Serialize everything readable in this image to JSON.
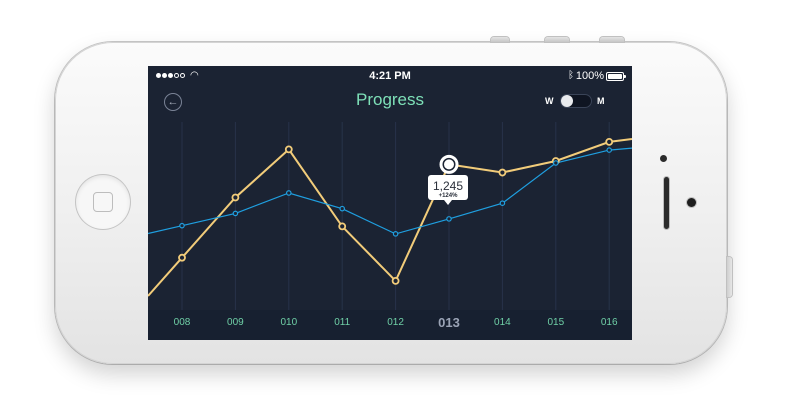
{
  "status_bar": {
    "time": "4:21 PM",
    "battery": "100%",
    "wifi_icon": "wifi-icon",
    "bluetooth_icon": "bluetooth-icon"
  },
  "header": {
    "title": "Progress",
    "back_icon": "back-arrow-icon",
    "toggle": {
      "left_label": "W",
      "right_label": "M",
      "selected": "W"
    }
  },
  "colors": {
    "background": "#1b2333",
    "title": "#7ee0b8",
    "series_gold": "#f2cc7a",
    "series_blue": "#1f9fe0",
    "axis_label": "#6fcfa6"
  },
  "tooltip": {
    "value": "1,245",
    "change": "+124%",
    "category": "013"
  },
  "chart_data": {
    "type": "line",
    "categories": [
      "008",
      "009",
      "010",
      "011",
      "012",
      "013",
      "014",
      "015",
      "016"
    ],
    "highlighted_category": "013",
    "series": [
      {
        "values": [
          560,
          1002,
          1355,
          790,
          390,
          1245,
          1185,
          1270,
          1410
        ]
      },
      {
        "values": [
          795,
          885,
          1035,
          920,
          735,
          845,
          960,
          1255,
          1350
        ]
      }
    ],
    "grid": true
  }
}
